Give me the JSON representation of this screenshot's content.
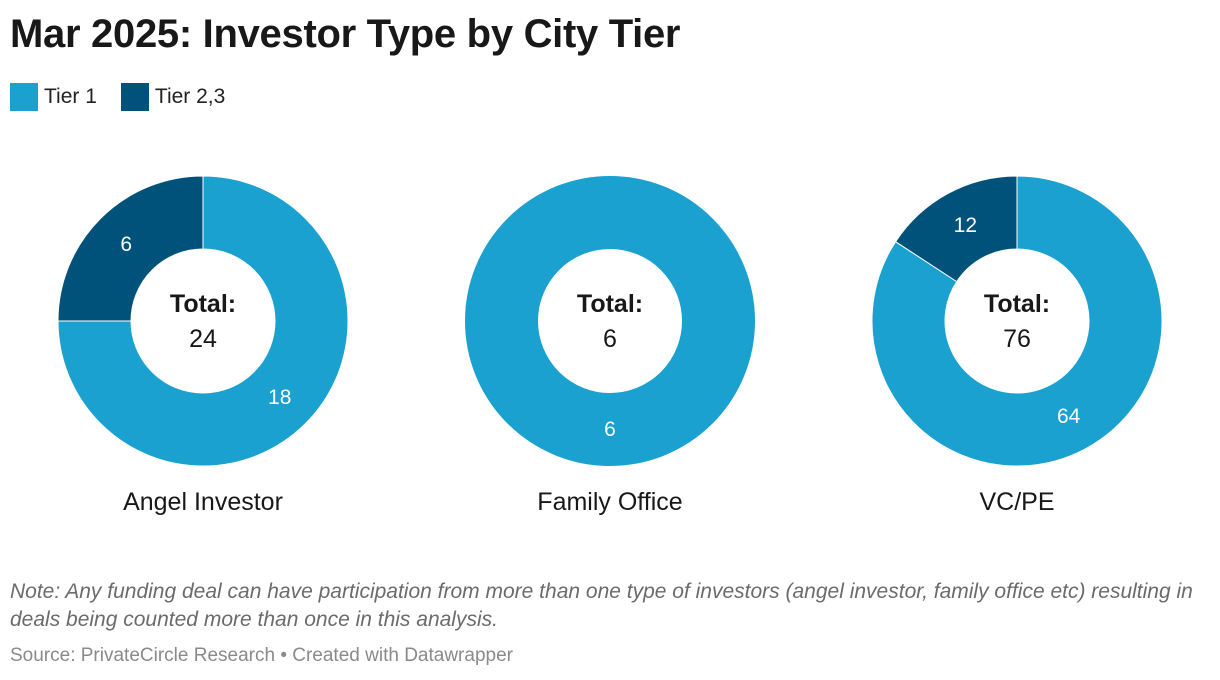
{
  "title": "Mar 2025: Investor Type by City Tier",
  "legend": [
    {
      "label": "Tier 1",
      "color": "#1aa1cf"
    },
    {
      "label": "Tier 2,3",
      "color": "#01527a"
    }
  ],
  "center_label": "Total:",
  "chart_data": {
    "type": "pie",
    "subtype": "donut",
    "legend_position": "top-left",
    "series_names": [
      "Tier 1",
      "Tier 2,3"
    ],
    "colors": {
      "Tier 1": "#1aa1cf",
      "Tier 2,3": "#01527a"
    },
    "charts": [
      {
        "name": "Angel Investor",
        "total": 24,
        "slices": [
          {
            "label": "Tier 1",
            "value": 18
          },
          {
            "label": "Tier 2,3",
            "value": 6
          }
        ]
      },
      {
        "name": "Family Office",
        "total": 6,
        "slices": [
          {
            "label": "Tier 1",
            "value": 6
          },
          {
            "label": "Tier 2,3",
            "value": 0
          }
        ]
      },
      {
        "name": "VC/PE",
        "total": 76,
        "slices": [
          {
            "label": "Tier 1",
            "value": 64
          },
          {
            "label": "Tier 2,3",
            "value": 12
          }
        ]
      }
    ]
  },
  "note": "Note: Any funding deal can have participation from more than one type of investors (angel investor, family office etc) resulting in deals being counted more than once in this analysis.",
  "footer": "Source: PrivateCircle Research • Created with Datawrapper"
}
